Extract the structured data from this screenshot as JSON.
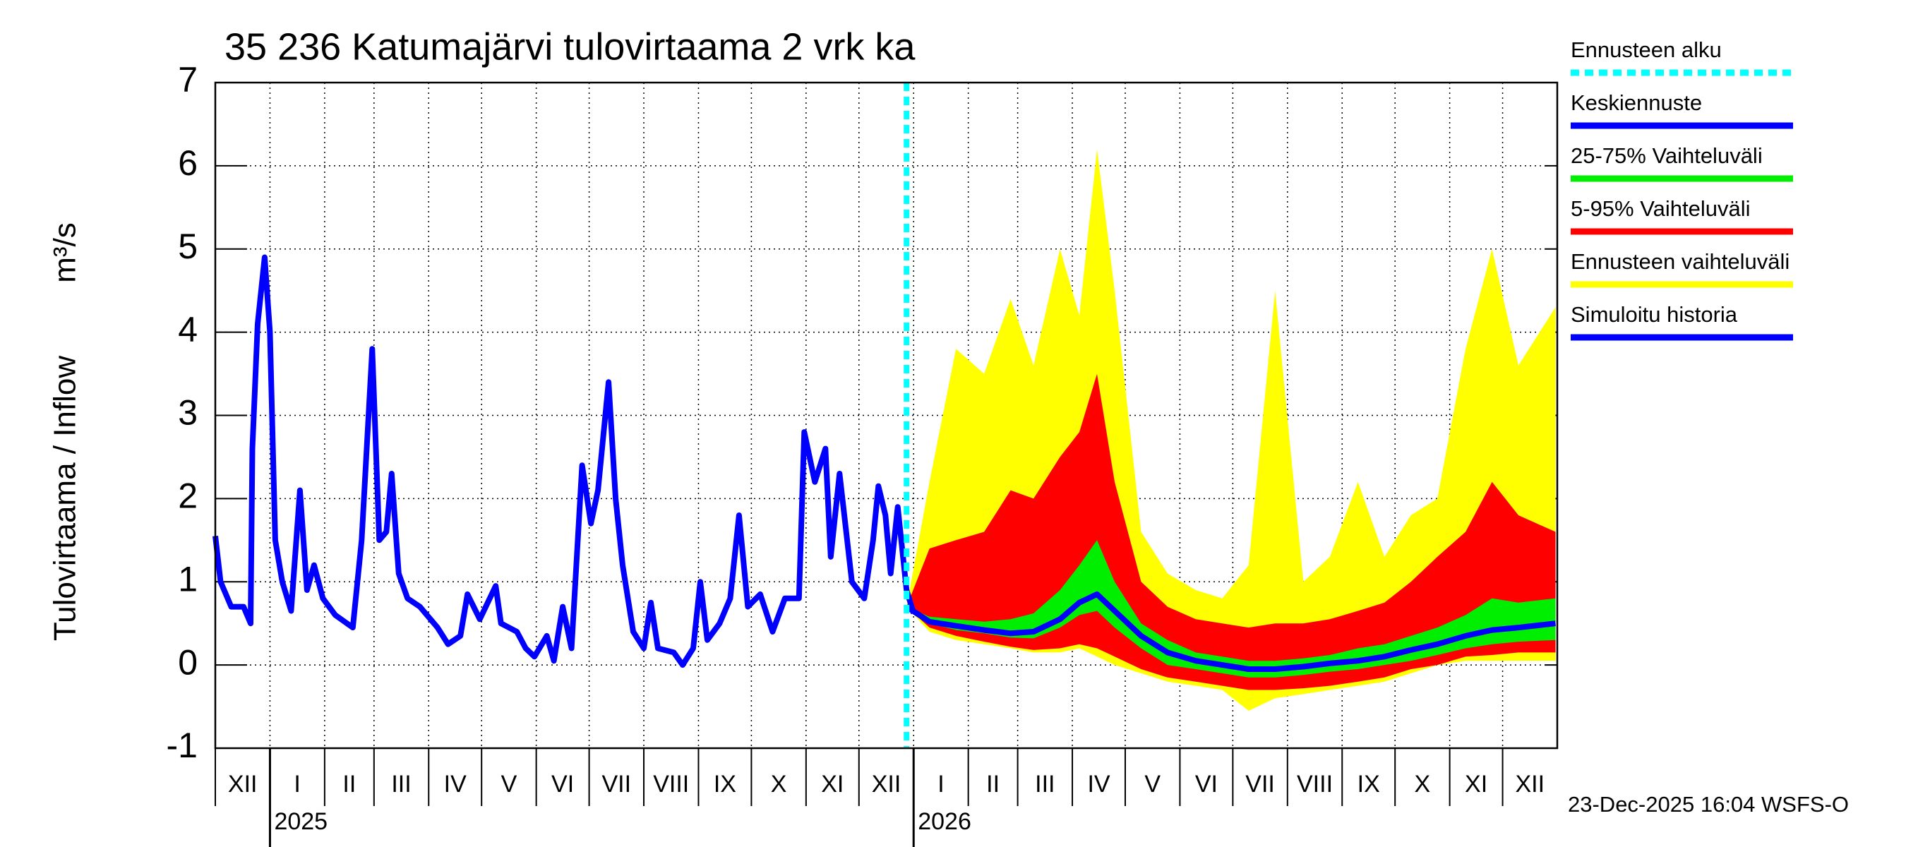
{
  "chart_data": {
    "type": "line",
    "title": "35 236 Katumajärvi tulovirtaama 2 vrk ka",
    "y_label": "Tulovirtaama / Inflow",
    "y_unit": "m³/s",
    "footer": "23-Dec-2025 16:04 WSFS-O",
    "ylim": [
      -1,
      7
    ],
    "yticks": [
      -1,
      0,
      1,
      2,
      3,
      4,
      5,
      6,
      7
    ],
    "xlim": [
      "2024-12-01",
      "2026-12-31"
    ],
    "grid": true,
    "legend": "right",
    "months": [
      {
        "value": "2024-12",
        "label": "XII"
      },
      {
        "value": "2025-01",
        "label": "I"
      },
      {
        "value": "2025-02",
        "label": "II"
      },
      {
        "value": "2025-03",
        "label": "III"
      },
      {
        "value": "2025-04",
        "label": "IV"
      },
      {
        "value": "2025-05",
        "label": "V"
      },
      {
        "value": "2025-06",
        "label": "VI"
      },
      {
        "value": "2025-07",
        "label": "VII"
      },
      {
        "value": "2025-08",
        "label": "VIII"
      },
      {
        "value": "2025-09",
        "label": "IX"
      },
      {
        "value": "2025-10",
        "label": "X"
      },
      {
        "value": "2025-11",
        "label": "XI"
      },
      {
        "value": "2025-12",
        "label": "XII"
      },
      {
        "value": "2026-01",
        "label": "I"
      },
      {
        "value": "2026-02",
        "label": "II"
      },
      {
        "value": "2026-03",
        "label": "III"
      },
      {
        "value": "2026-04",
        "label": "IV"
      },
      {
        "value": "2026-05",
        "label": "V"
      },
      {
        "value": "2026-06",
        "label": "VI"
      },
      {
        "value": "2026-07",
        "label": "VII"
      },
      {
        "value": "2026-08",
        "label": "VIII"
      },
      {
        "value": "2026-09",
        "label": "IX"
      },
      {
        "value": "2026-10",
        "label": "X"
      },
      {
        "value": "2026-11",
        "label": "XI"
      },
      {
        "value": "2026-12",
        "label": "XII"
      }
    ],
    "years": [
      2025,
      2026
    ],
    "series": [
      {
        "name": "Ennusteen alku",
        "color": "#00ffff",
        "style": "vline",
        "x": [
          "2025-12-28"
        ]
      },
      {
        "name": "Keskiennuste",
        "color": "#0000ff",
        "style": "line",
        "x": [
          "2025-12-28",
          "2026-01-10",
          "2026-01-25",
          "2026-02-10",
          "2026-02-25",
          "2026-03-10",
          "2026-03-25",
          "2026-04-05",
          "2026-04-15",
          "2026-04-25",
          "2026-05-10",
          "2026-05-25",
          "2026-06-10",
          "2026-06-25",
          "2026-07-10",
          "2026-07-25",
          "2026-08-10",
          "2026-08-25",
          "2026-09-10",
          "2026-09-25",
          "2026-10-10",
          "2026-10-25",
          "2026-11-10",
          "2026-11-25",
          "2026-12-10",
          "2026-12-31"
        ],
        "values": [
          0.7,
          0.52,
          0.47,
          0.42,
          0.38,
          0.4,
          0.55,
          0.75,
          0.85,
          0.65,
          0.35,
          0.15,
          0.05,
          0.0,
          -0.05,
          -0.05,
          -0.02,
          0.02,
          0.05,
          0.1,
          0.18,
          0.25,
          0.35,
          0.42,
          0.45,
          0.5
        ]
      },
      {
        "name": "25-75% Vaihteluväli",
        "color": "#00ee00",
        "style": "band",
        "x": [
          "2025-12-28",
          "2026-01-10",
          "2026-01-25",
          "2026-02-10",
          "2026-02-25",
          "2026-03-10",
          "2026-03-25",
          "2026-04-05",
          "2026-04-15",
          "2026-04-25",
          "2026-05-10",
          "2026-05-25",
          "2026-06-10",
          "2026-06-25",
          "2026-07-10",
          "2026-07-25",
          "2026-08-10",
          "2026-08-25",
          "2026-09-10",
          "2026-09-25",
          "2026-10-10",
          "2026-10-25",
          "2026-11-10",
          "2026-11-25",
          "2026-12-10",
          "2026-12-31"
        ],
        "low": [
          0.7,
          0.5,
          0.42,
          0.38,
          0.33,
          0.32,
          0.45,
          0.6,
          0.65,
          0.45,
          0.2,
          0.0,
          -0.05,
          -0.1,
          -0.15,
          -0.15,
          -0.12,
          -0.08,
          -0.05,
          0.0,
          0.05,
          0.12,
          0.2,
          0.25,
          0.28,
          0.3
        ],
        "high": [
          0.7,
          0.58,
          0.55,
          0.52,
          0.55,
          0.62,
          0.9,
          1.2,
          1.5,
          1.0,
          0.5,
          0.3,
          0.15,
          0.1,
          0.05,
          0.05,
          0.08,
          0.12,
          0.2,
          0.25,
          0.35,
          0.45,
          0.6,
          0.8,
          0.75,
          0.8
        ]
      },
      {
        "name": "5-95% Vaihteluväli",
        "color": "#ff0000",
        "style": "band",
        "x": [
          "2025-12-28",
          "2026-01-10",
          "2026-01-25",
          "2026-02-10",
          "2026-02-25",
          "2026-03-10",
          "2026-03-25",
          "2026-04-05",
          "2026-04-15",
          "2026-04-25",
          "2026-05-10",
          "2026-05-25",
          "2026-06-10",
          "2026-06-25",
          "2026-07-10",
          "2026-07-25",
          "2026-08-10",
          "2026-08-25",
          "2026-09-10",
          "2026-09-25",
          "2026-10-10",
          "2026-10-25",
          "2026-11-10",
          "2026-11-25",
          "2026-12-10",
          "2026-12-31"
        ],
        "low": [
          0.7,
          0.45,
          0.35,
          0.28,
          0.22,
          0.18,
          0.2,
          0.25,
          0.2,
          0.1,
          -0.05,
          -0.15,
          -0.2,
          -0.25,
          -0.3,
          -0.3,
          -0.28,
          -0.25,
          -0.2,
          -0.15,
          -0.05,
          0.0,
          0.1,
          0.12,
          0.15,
          0.15
        ],
        "high": [
          0.7,
          1.4,
          1.5,
          1.6,
          2.1,
          2.0,
          2.5,
          2.8,
          3.5,
          2.2,
          1.0,
          0.7,
          0.55,
          0.5,
          0.45,
          0.5,
          0.5,
          0.55,
          0.65,
          0.75,
          1.0,
          1.3,
          1.6,
          2.2,
          1.8,
          1.6
        ]
      },
      {
        "name": "Ennusteen vaihteluväli",
        "color": "#ffff00",
        "style": "band",
        "x": [
          "2025-12-28",
          "2026-01-10",
          "2026-01-25",
          "2026-02-10",
          "2026-02-25",
          "2026-03-10",
          "2026-03-25",
          "2026-04-05",
          "2026-04-15",
          "2026-04-25",
          "2026-05-10",
          "2026-05-25",
          "2026-06-10",
          "2026-06-25",
          "2026-07-10",
          "2026-07-25",
          "2026-08-10",
          "2026-08-25",
          "2026-09-10",
          "2026-09-25",
          "2026-10-10",
          "2026-10-25",
          "2026-11-10",
          "2026-11-25",
          "2026-12-10",
          "2026-12-31"
        ],
        "low": [
          0.7,
          0.4,
          0.3,
          0.25,
          0.2,
          0.15,
          0.15,
          0.2,
          0.1,
          0.0,
          -0.1,
          -0.2,
          -0.25,
          -0.3,
          -0.55,
          -0.4,
          -0.35,
          -0.3,
          -0.25,
          -0.2,
          -0.1,
          0.0,
          0.05,
          0.05,
          0.05,
          0.05
        ],
        "high": [
          0.7,
          2.2,
          3.8,
          3.5,
          4.4,
          3.6,
          5.0,
          4.2,
          6.2,
          4.5,
          1.6,
          1.1,
          0.9,
          0.8,
          1.2,
          4.5,
          1.0,
          1.3,
          2.2,
          1.3,
          1.8,
          2.0,
          3.8,
          5.0,
          3.6,
          4.3
        ]
      },
      {
        "name": "Simuloitu historia",
        "color": "#0000ff",
        "style": "line",
        "x": [
          "2024-12-01",
          "2024-12-04",
          "2024-12-10",
          "2024-12-17",
          "2024-12-21",
          "2024-12-22",
          "2024-12-25",
          "2024-12-29",
          "2025-01-01",
          "2025-01-04",
          "2025-01-08",
          "2025-01-13",
          "2025-01-18",
          "2025-01-22",
          "2025-01-26",
          "2025-01-31",
          "2025-02-07",
          "2025-02-17",
          "2025-02-22",
          "2025-02-28",
          "2025-03-04",
          "2025-03-08",
          "2025-03-11",
          "2025-03-15",
          "2025-03-20",
          "2025-03-27",
          "2025-04-06",
          "2025-04-12",
          "2025-04-19",
          "2025-04-23",
          "2025-04-30",
          "2025-05-09",
          "2025-05-12",
          "2025-05-21",
          "2025-05-26",
          "2025-05-31",
          "2025-06-07",
          "2025-06-11",
          "2025-06-16",
          "2025-06-21",
          "2025-06-27",
          "2025-07-02",
          "2025-07-06",
          "2025-07-12",
          "2025-07-16",
          "2025-07-20",
          "2025-07-26",
          "2025-08-01",
          "2025-08-05",
          "2025-08-09",
          "2025-08-18",
          "2025-08-23",
          "2025-08-29",
          "2025-09-02",
          "2025-09-06",
          "2025-09-13",
          "2025-09-19",
          "2025-09-24",
          "2025-09-29",
          "2025-10-06",
          "2025-10-13",
          "2025-10-20",
          "2025-10-28",
          "2025-10-31",
          "2025-11-06",
          "2025-11-12",
          "2025-11-15",
          "2025-11-20",
          "2025-11-27",
          "2025-12-04",
          "2025-12-09",
          "2025-12-12",
          "2025-12-16",
          "2025-12-19",
          "2025-12-23",
          "2025-12-28",
          "2026-01-01"
        ],
        "values": [
          1.55,
          1.0,
          0.7,
          0.7,
          0.5,
          2.6,
          4.1,
          4.9,
          4.0,
          1.5,
          1.0,
          0.65,
          2.1,
          0.9,
          1.2,
          0.8,
          0.6,
          0.45,
          1.5,
          3.8,
          1.5,
          1.6,
          2.3,
          1.1,
          0.8,
          0.7,
          0.45,
          0.25,
          0.35,
          0.85,
          0.55,
          0.95,
          0.5,
          0.4,
          0.2,
          0.1,
          0.35,
          0.05,
          0.7,
          0.2,
          2.4,
          1.7,
          2.1,
          3.4,
          2.0,
          1.2,
          0.4,
          0.2,
          0.75,
          0.2,
          0.15,
          0.0,
          0.2,
          1.0,
          0.3,
          0.5,
          0.8,
          1.8,
          0.7,
          0.85,
          0.4,
          0.8,
          0.8,
          2.8,
          2.2,
          2.6,
          1.3,
          2.3,
          1.0,
          0.8,
          1.5,
          2.15,
          1.8,
          1.1,
          1.9,
          0.9,
          0.62
        ]
      }
    ]
  }
}
